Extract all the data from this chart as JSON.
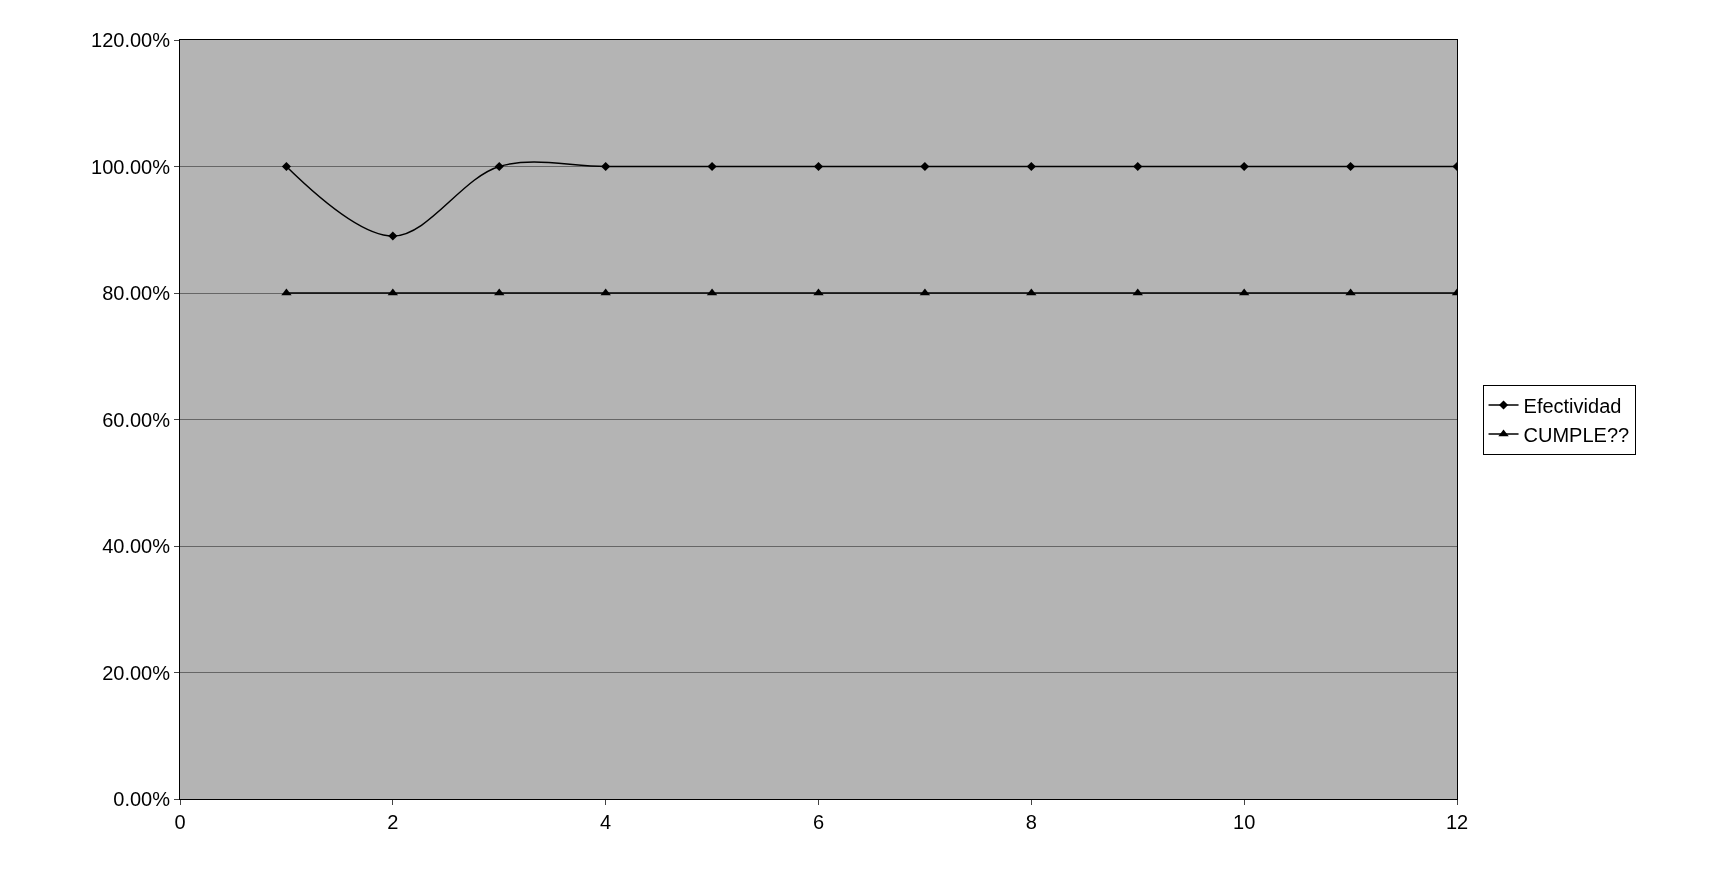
{
  "chart_data": {
    "type": "line",
    "x": [
      1,
      2,
      3,
      4,
      5,
      6,
      7,
      8,
      9,
      10,
      11,
      12
    ],
    "series": [
      {
        "name": "Efectividad",
        "color": "#000000",
        "marker": "diamond",
        "values": [
          100,
          89,
          100,
          100,
          100,
          100,
          100,
          100,
          100,
          100,
          100,
          100
        ]
      },
      {
        "name": "CUMPLE??",
        "color": "#000000",
        "marker": "triangle",
        "values": [
          80,
          80,
          80,
          80,
          80,
          80,
          80,
          80,
          80,
          80,
          80,
          80
        ]
      }
    ],
    "xlim": [
      0,
      12
    ],
    "xticks": [
      0,
      2,
      4,
      6,
      8,
      10,
      12
    ],
    "ylim": [
      0,
      120
    ],
    "yticks": [
      {
        "value": 0,
        "label": "0.00%"
      },
      {
        "value": 20,
        "label": "20.00%"
      },
      {
        "value": 40,
        "label": "40.00%"
      },
      {
        "value": 60,
        "label": "60.00%"
      },
      {
        "value": 80,
        "label": "80.00%"
      },
      {
        "value": 100,
        "label": "100.00%"
      },
      {
        "value": 120,
        "label": "120.00%"
      }
    ],
    "grid": "y",
    "legend": "right",
    "line_style": "solid"
  }
}
